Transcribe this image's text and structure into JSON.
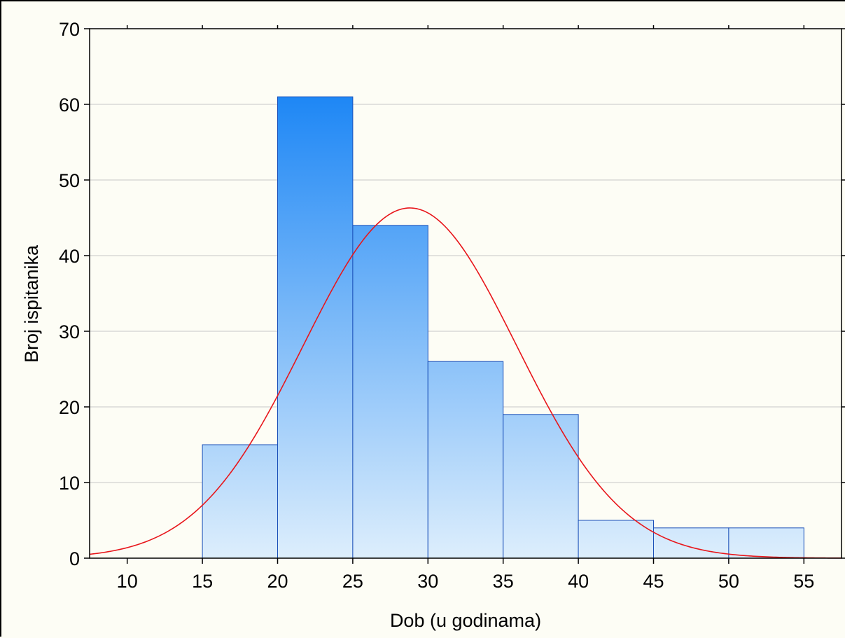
{
  "chart_data": {
    "type": "bar",
    "title": "",
    "xlabel": "Dob (u godinama)",
    "ylabel": "Broj ispitanika",
    "xlim": [
      7.5,
      57.5
    ],
    "ylim": [
      0,
      70
    ],
    "x_ticks": [
      10,
      15,
      20,
      25,
      30,
      35,
      40,
      45,
      50,
      55
    ],
    "y_ticks": [
      0,
      10,
      20,
      30,
      40,
      50,
      60,
      70
    ],
    "grid": true,
    "bins": [
      {
        "from": 15,
        "to": 20,
        "count": 15
      },
      {
        "from": 20,
        "to": 25,
        "count": 61
      },
      {
        "from": 25,
        "to": 30,
        "count": 44
      },
      {
        "from": 30,
        "to": 35,
        "count": 26
      },
      {
        "from": 35,
        "to": 40,
        "count": 19
      },
      {
        "from": 40,
        "to": 45,
        "count": 5
      },
      {
        "from": 45,
        "to": 50,
        "count": 4
      },
      {
        "from": 50,
        "to": 55,
        "count": 4
      }
    ],
    "normal_curve": {
      "mean": 28.8,
      "peak": 46.3,
      "sd": 7.1
    },
    "colors": {
      "bar_top": "#1e87f5",
      "bar_bottom": "#ddeefc",
      "bar_edge": "#1a4fb8",
      "curve": "#e8161b",
      "grid": "#c8c8c8"
    }
  }
}
